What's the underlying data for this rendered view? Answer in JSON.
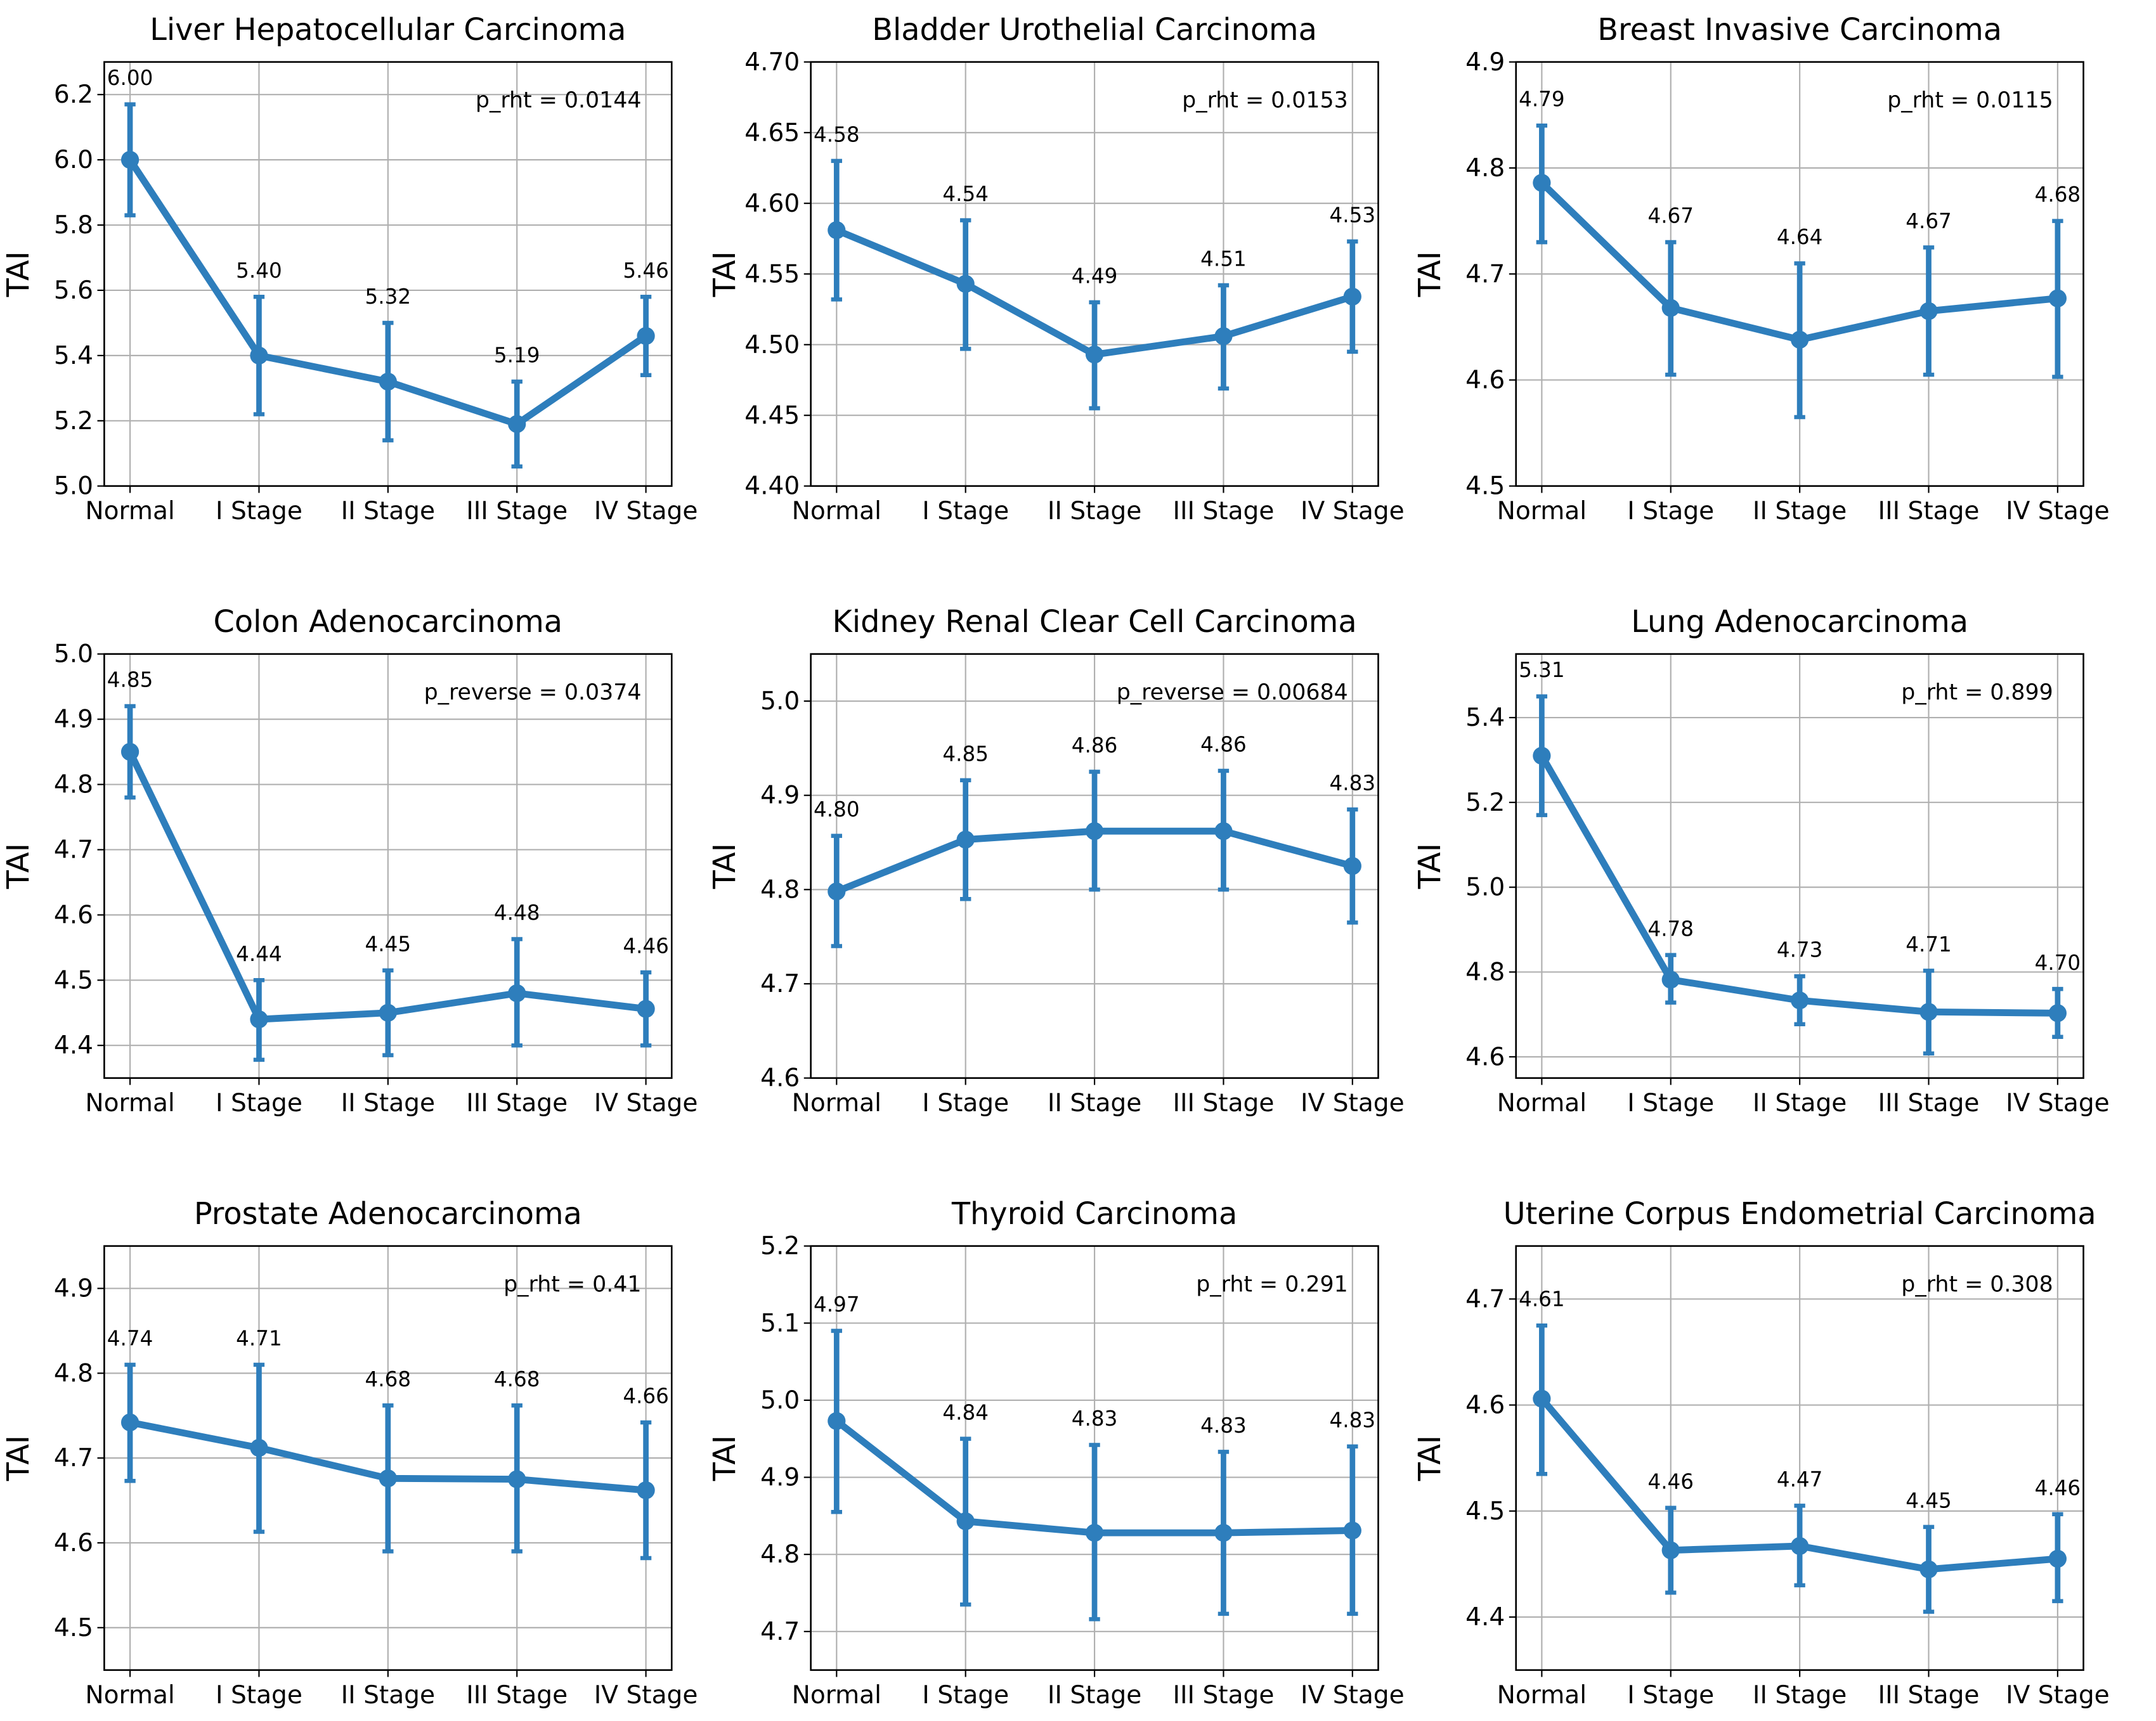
{
  "chart_data": [
    {
      "type": "line",
      "title": "Liver Hepatocellular Carcinoma",
      "ylabel": "TAI",
      "p_label": "p_rht = 0.0144",
      "categories": [
        "Normal",
        "I Stage",
        "II Stage",
        "III Stage",
        "IV Stage"
      ],
      "values": [
        6.0,
        5.4,
        5.32,
        5.19,
        5.46
      ],
      "value_labels": [
        "6.00",
        "5.40",
        "5.32",
        "5.19",
        "5.46"
      ],
      "err_low": [
        5.83,
        5.22,
        5.14,
        5.06,
        5.34
      ],
      "err_high": [
        6.17,
        5.58,
        5.5,
        5.32,
        5.58
      ],
      "ylim": [
        5.0,
        6.3
      ],
      "yticks": [
        "5.0",
        "5.2",
        "5.4",
        "5.6",
        "5.8",
        "6.0",
        "6.2"
      ],
      "grid": true
    },
    {
      "type": "line",
      "title": "Bladder Urothelial Carcinoma",
      "ylabel": "TAI",
      "p_label": "p_rht = 0.0153",
      "categories": [
        "Normal",
        "I Stage",
        "II Stage",
        "III Stage",
        "IV Stage"
      ],
      "values": [
        4.581,
        4.543,
        4.493,
        4.506,
        4.534
      ],
      "value_labels": [
        "4.58",
        "4.54",
        "4.49",
        "4.51",
        "4.53"
      ],
      "err_low": [
        4.532,
        4.497,
        4.455,
        4.469,
        4.495
      ],
      "err_high": [
        4.63,
        4.588,
        4.53,
        4.542,
        4.573
      ],
      "ylim": [
        4.4,
        4.7
      ],
      "yticks": [
        "4.40",
        "4.45",
        "4.50",
        "4.55",
        "4.60",
        "4.65",
        "4.70"
      ],
      "grid": true
    },
    {
      "type": "line",
      "title": "Breast Invasive Carcinoma",
      "ylabel": "TAI",
      "p_label": "p_rht = 0.0115",
      "categories": [
        "Normal",
        "I Stage",
        "II Stage",
        "III Stage",
        "IV Stage"
      ],
      "values": [
        4.786,
        4.668,
        4.638,
        4.665,
        4.677
      ],
      "value_labels": [
        "4.79",
        "4.67",
        "4.64",
        "4.67",
        "4.68"
      ],
      "err_low": [
        4.73,
        4.605,
        4.565,
        4.605,
        4.603
      ],
      "err_high": [
        4.84,
        4.73,
        4.71,
        4.725,
        4.75
      ],
      "ylim": [
        4.5,
        4.9
      ],
      "yticks": [
        "4.5",
        "4.6",
        "4.7",
        "4.8",
        "4.9"
      ],
      "grid": true
    },
    {
      "type": "line",
      "title": "Colon Adenocarcinoma",
      "ylabel": "TAI",
      "p_label": "p_reverse = 0.0374",
      "categories": [
        "Normal",
        "I Stage",
        "II Stage",
        "III Stage",
        "IV Stage"
      ],
      "values": [
        4.85,
        4.44,
        4.45,
        4.48,
        4.456
      ],
      "value_labels": [
        "4.85",
        "4.44",
        "4.45",
        "4.48",
        "4.46"
      ],
      "err_low": [
        4.78,
        4.378,
        4.385,
        4.4,
        4.4
      ],
      "err_high": [
        4.92,
        4.5,
        4.515,
        4.563,
        4.512
      ],
      "ylim": [
        4.35,
        5.0
      ],
      "yticks": [
        "4.4",
        "4.5",
        "4.6",
        "4.7",
        "4.8",
        "4.9",
        "5.0"
      ],
      "grid": true
    },
    {
      "type": "line",
      "title": "Kidney Renal Clear Cell Carcinoma",
      "ylabel": "TAI",
      "p_label": "p_reverse = 0.00684",
      "categories": [
        "Normal",
        "I Stage",
        "II Stage",
        "III Stage",
        "IV Stage"
      ],
      "values": [
        4.798,
        4.853,
        4.862,
        4.862,
        4.825
      ],
      "value_labels": [
        "4.80",
        "4.85",
        "4.86",
        "4.86",
        "4.83"
      ],
      "err_low": [
        4.74,
        4.79,
        4.8,
        4.8,
        4.765
      ],
      "err_high": [
        4.857,
        4.916,
        4.925,
        4.926,
        4.885
      ],
      "ylim": [
        4.6,
        5.05
      ],
      "yticks": [
        "4.6",
        "4.7",
        "4.8",
        "4.9",
        "5.0"
      ],
      "grid": true
    },
    {
      "type": "line",
      "title": "Lung Adenocarcinoma",
      "ylabel": "TAI",
      "p_label": "p_rht = 0.899",
      "categories": [
        "Normal",
        "I Stage",
        "II Stage",
        "III Stage",
        "IV Stage"
      ],
      "values": [
        5.31,
        4.782,
        4.733,
        4.706,
        4.703
      ],
      "value_labels": [
        "5.31",
        "4.78",
        "4.73",
        "4.71",
        "4.70"
      ],
      "err_low": [
        5.17,
        4.728,
        4.677,
        4.608,
        4.647
      ],
      "err_high": [
        5.45,
        4.84,
        4.79,
        4.803,
        4.76
      ],
      "ylim": [
        4.55,
        5.55
      ],
      "yticks": [
        "4.6",
        "4.8",
        "5.0",
        "5.2",
        "5.4"
      ],
      "grid": true
    },
    {
      "type": "line",
      "title": "Prostate Adenocarcinoma",
      "ylabel": "TAI",
      "p_label": "p_rht = 0.41",
      "categories": [
        "Normal",
        "I Stage",
        "II Stage",
        "III Stage",
        "IV Stage"
      ],
      "values": [
        4.742,
        4.712,
        4.676,
        4.675,
        4.662
      ],
      "value_labels": [
        "4.74",
        "4.71",
        "4.68",
        "4.68",
        "4.66"
      ],
      "err_low": [
        4.673,
        4.613,
        4.59,
        4.59,
        4.582
      ],
      "err_high": [
        4.81,
        4.81,
        4.762,
        4.762,
        4.742
      ],
      "ylim": [
        4.45,
        4.95
      ],
      "yticks": [
        "4.5",
        "4.6",
        "4.7",
        "4.8",
        "4.9"
      ],
      "grid": true
    },
    {
      "type": "line",
      "title": "Thyroid Carcinoma",
      "ylabel": "TAI",
      "p_label": "p_rht = 0.291",
      "categories": [
        "Normal",
        "I Stage",
        "II Stage",
        "III Stage",
        "IV Stage"
      ],
      "values": [
        4.973,
        4.843,
        4.828,
        4.828,
        4.831
      ],
      "value_labels": [
        "4.97",
        "4.84",
        "4.83",
        "4.83",
        "4.83"
      ],
      "err_low": [
        4.855,
        4.735,
        4.716,
        4.723,
        4.723
      ],
      "err_high": [
        5.09,
        4.95,
        4.942,
        4.933,
        4.94
      ],
      "ylim": [
        4.65,
        5.2
      ],
      "yticks": [
        "4.7",
        "4.8",
        "4.9",
        "5.0",
        "5.1",
        "5.2"
      ],
      "grid": true
    },
    {
      "type": "line",
      "title": "Uterine Corpus Endometrial Carcinoma",
      "ylabel": "TAI",
      "p_label": "p_rht = 0.308",
      "categories": [
        "Normal",
        "I Stage",
        "II Stage",
        "III Stage",
        "IV Stage"
      ],
      "values": [
        4.606,
        4.463,
        4.467,
        4.445,
        4.455
      ],
      "value_labels": [
        "4.61",
        "4.46",
        "4.47",
        "4.45",
        "4.46"
      ],
      "err_low": [
        4.535,
        4.423,
        4.43,
        4.405,
        4.415
      ],
      "err_high": [
        4.675,
        4.503,
        4.505,
        4.485,
        4.497
      ],
      "ylim": [
        4.35,
        4.75
      ],
      "yticks": [
        "4.4",
        "4.5",
        "4.6",
        "4.7"
      ],
      "grid": true
    }
  ],
  "colors": {
    "line": "#2e7ebc",
    "grid": "#b0b0b0"
  }
}
